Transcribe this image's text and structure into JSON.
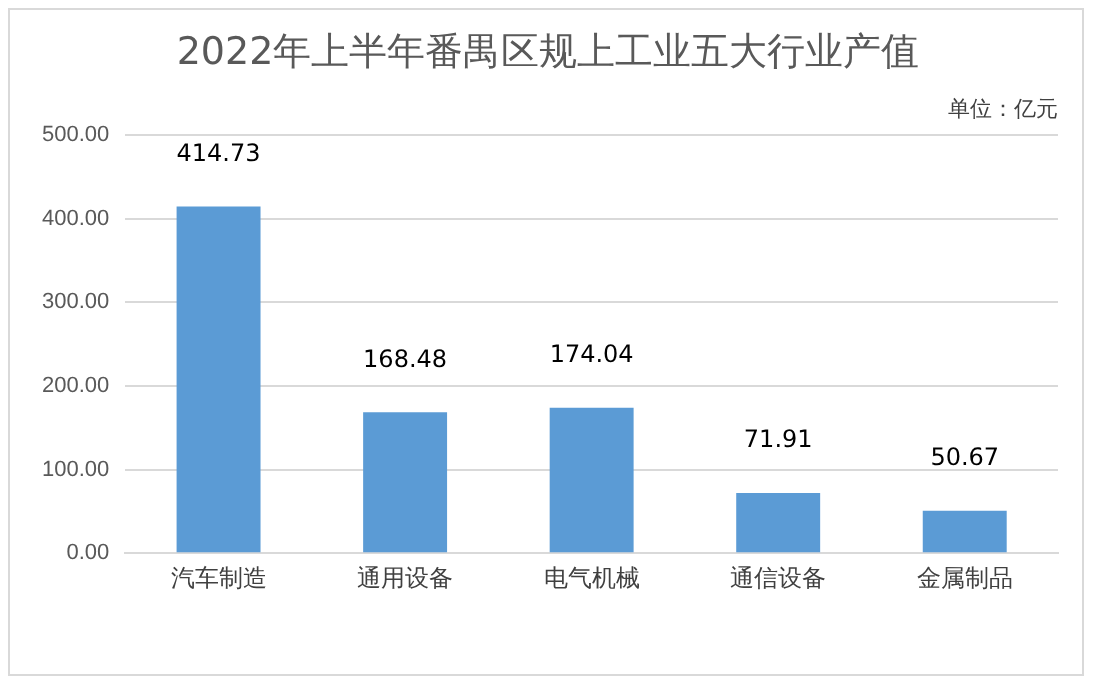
{
  "chart_data": {
    "type": "bar",
    "title": "2022年上半年番禺区规上工业五大行业产值",
    "ylabel": "单位：亿元",
    "categories": [
      "汽车制造",
      "通用设备",
      "电气机械",
      "通信设备",
      "金属制品"
    ],
    "values": [
      414.73,
      168.48,
      174.04,
      71.91,
      50.67
    ],
    "color": "#5b9bd5",
    "ylim": [
      0,
      500
    ],
    "yticks": [
      {
        "value": 0,
        "label": "0.00"
      },
      {
        "value": 100,
        "label": "100.00"
      },
      {
        "value": 200,
        "label": "200.00"
      },
      {
        "value": 300,
        "label": "300.00"
      },
      {
        "value": 400,
        "label": "400.00"
      },
      {
        "value": 500,
        "label": "500.00"
      }
    ],
    "grid": "y",
    "data_labels": true,
    "legend": false
  }
}
